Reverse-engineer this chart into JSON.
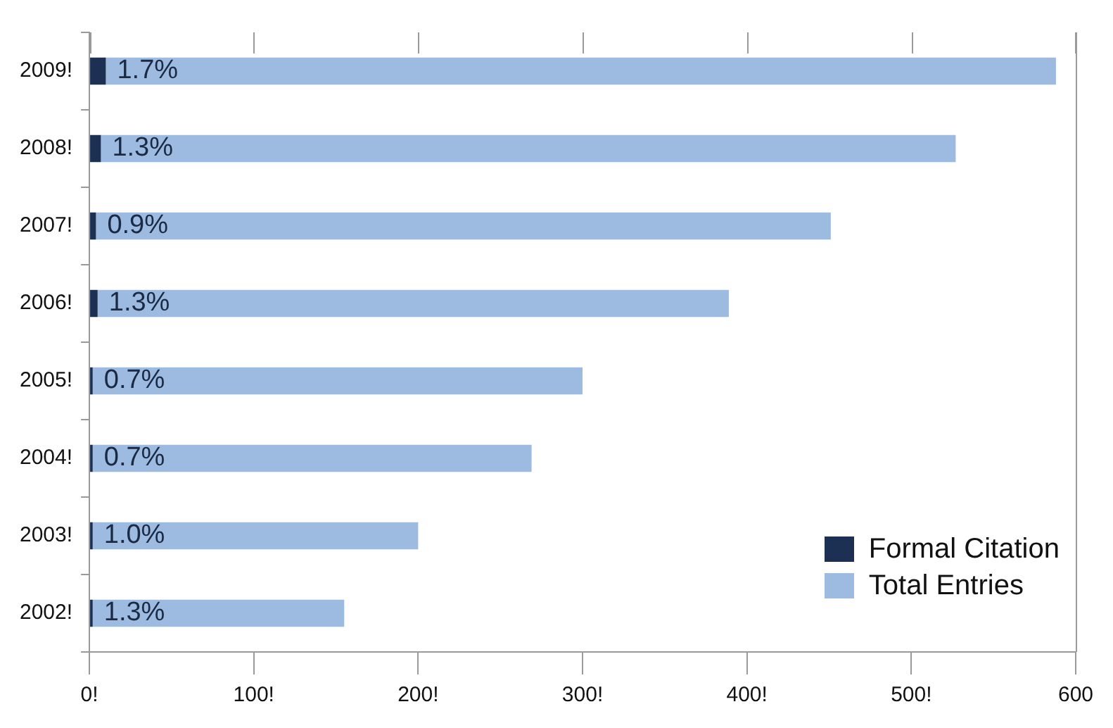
{
  "chart_data": {
    "type": "bar",
    "orientation": "horizontal",
    "stacked": true,
    "categories": [
      "2009!",
      "2008!",
      "2007!",
      "2006!",
      "2005!",
      "2004!",
      "2003!",
      "2002!"
    ],
    "series": [
      {
        "name": "Formal Citation",
        "color": "#1b3052",
        "values": [
          10,
          7,
          4,
          5,
          2,
          2,
          2,
          2
        ]
      },
      {
        "name": "Total Entries",
        "color": "#9dbbe0",
        "values": [
          578,
          520,
          447,
          384,
          298,
          267,
          198,
          153
        ]
      }
    ],
    "annotations": [
      "1.7%",
      "1.3%",
      "0.9%",
      "1.3%",
      "0.7%",
      "0.7%",
      "1.0%",
      "1.3%"
    ],
    "xlim": [
      0,
      600
    ],
    "xticks": [
      {
        "value": 0,
        "label": "0!"
      },
      {
        "value": 100,
        "label": "100!"
      },
      {
        "value": 200,
        "label": "200!"
      },
      {
        "value": 300,
        "label": "300!"
      },
      {
        "value": 400,
        "label": "400!"
      },
      {
        "value": 500,
        "label": "500!"
      },
      600
    ],
    "grid": false,
    "legend": "bottom right"
  }
}
